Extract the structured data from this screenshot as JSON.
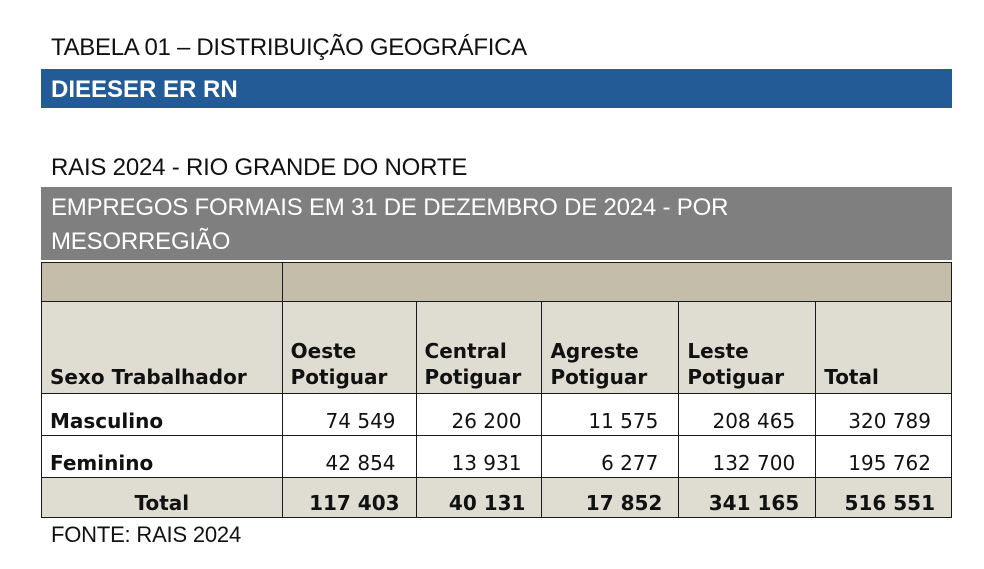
{
  "table_title": "TABELA 01 – DISTRIBUIÇÃO GEOGRÁFICA",
  "org_label": "DIEESER ER RN",
  "source_heading": "RAIS 2024 - RIO GRANDE DO NORTE",
  "table_subtitle": "EMPREGOS FORMAIS  EM 31 DE DEZEMBRO DE 2024 - POR MESORREGIÃO",
  "columns": [
    {
      "line1": "",
      "line2": "Sexo Trabalhador"
    },
    {
      "line1": "Oeste",
      "line2": "Potiguar"
    },
    {
      "line1": "Central",
      "line2": "Potiguar"
    },
    {
      "line1": "Agreste",
      "line2": "Potiguar"
    },
    {
      "line1": "Leste",
      "line2": "Potiguar"
    },
    {
      "line1": "",
      "line2": "Total"
    }
  ],
  "rows": [
    {
      "label": "Masculino",
      "values": [
        "74 549",
        "26 200",
        "11 575",
        "208 465",
        "320 789"
      ]
    },
    {
      "label": "Feminino",
      "values": [
        "42 854",
        "13 931",
        "6 277",
        "132 700",
        "195 762"
      ]
    }
  ],
  "total_row": {
    "label": "Total",
    "values": [
      "117 403",
      "40 131",
      "17 852",
      "341 165",
      "516 551"
    ]
  },
  "footnote": "FONTE: RAIS 2024",
  "colors": {
    "blue_bar": "#235b97",
    "gray_bar": "#7f7f7f",
    "band": "#c4bda9",
    "header_bg": "#dfdcd2"
  }
}
